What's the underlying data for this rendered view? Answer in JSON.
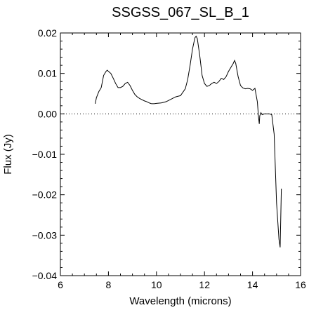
{
  "chart_data": {
    "type": "line",
    "title": "SSGSS_067_SL_B_1",
    "xlabel": "Wavelength (microns)",
    "ylabel": "Flux (Jy)",
    "xlim": [
      6,
      16
    ],
    "ylim": [
      -0.04,
      0.02
    ],
    "x_ticks": [
      6,
      8,
      10,
      12,
      14,
      16
    ],
    "x_tick_labels": [
      "6",
      "8",
      "10",
      "12",
      "14",
      "16"
    ],
    "y_ticks": [
      -0.04,
      -0.03,
      -0.02,
      -0.01,
      0.0,
      0.01,
      0.02
    ],
    "y_tick_labels": [
      "−0.04",
      "−0.03",
      "−0.02",
      "−0.01",
      "0.00",
      "0.01",
      "0.02"
    ],
    "grid": false,
    "zero_line": "dotted",
    "series": [
      {
        "x": [
          7.45,
          7.5,
          7.6,
          7.7,
          7.8,
          7.9,
          7.95,
          8.0,
          8.1,
          8.2,
          8.3,
          8.4,
          8.5,
          8.6,
          8.7,
          8.8,
          8.9,
          9.0,
          9.1,
          9.2,
          9.3,
          9.4,
          9.5,
          9.6,
          9.7,
          9.8,
          9.9,
          10.0,
          10.2,
          10.4,
          10.6,
          10.8,
          11.0,
          11.2,
          11.3,
          11.4,
          11.5,
          11.6,
          11.65,
          11.7,
          11.8,
          11.9,
          12.0,
          12.1,
          12.2,
          12.3,
          12.4,
          12.5,
          12.6,
          12.7,
          12.8,
          12.9,
          13.0,
          13.1,
          13.2,
          13.25,
          13.3,
          13.4,
          13.5,
          13.6,
          13.7,
          13.8,
          13.9,
          14.0,
          14.1,
          14.2,
          14.25,
          14.28,
          14.3,
          14.35,
          14.4,
          14.5,
          14.6,
          14.7,
          14.8,
          14.9,
          15.0,
          15.1,
          15.15,
          15.2
        ],
        "y": [
          0.0025,
          0.004,
          0.0055,
          0.0065,
          0.0095,
          0.0105,
          0.0108,
          0.0105,
          0.01,
          0.0088,
          0.0075,
          0.0065,
          0.0065,
          0.0068,
          0.0075,
          0.0078,
          0.007,
          0.0058,
          0.0048,
          0.0042,
          0.0038,
          0.0035,
          0.0032,
          0.003,
          0.0027,
          0.0025,
          0.0025,
          0.0026,
          0.0027,
          0.003,
          0.0036,
          0.0042,
          0.0045,
          0.0062,
          0.0085,
          0.012,
          0.016,
          0.0188,
          0.0192,
          0.0186,
          0.0145,
          0.0095,
          0.0075,
          0.0068,
          0.007,
          0.0075,
          0.0078,
          0.0075,
          0.008,
          0.0088,
          0.0085,
          0.0092,
          0.0105,
          0.0115,
          0.0125,
          0.0132,
          0.0125,
          0.0092,
          0.007,
          0.0064,
          0.0062,
          0.0063,
          0.0062,
          0.0058,
          0.0063,
          0.003,
          -0.0008,
          -0.0025,
          -0.0005,
          0.0003,
          -0.0002,
          0.0,
          0.0,
          0.0,
          -0.0002,
          -0.005,
          -0.022,
          -0.031,
          -0.033,
          -0.0185
        ]
      }
    ]
  }
}
